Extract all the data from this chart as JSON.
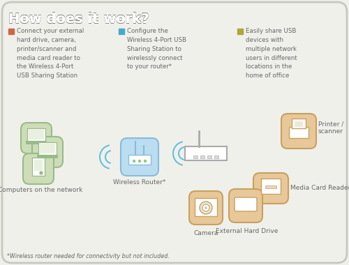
{
  "title": "How does it work?",
  "bg_color": "#f0f0eb",
  "border_color": "#c8c8c0",
  "title_color": "#666666",
  "bullet1_color": "#cc6644",
  "bullet2_color": "#44aacc",
  "bullet3_color": "#aaaa33",
  "bullet1_text": "Connect your external\nhard drive, camera,\nprinter/scanner and\nmedia card reader to\nthe Wireless 4-Port\nUSB Sharing Station",
  "bullet2_text": "Configure the\nWireless 4-Port USB\nSharing Station to\nwirelessly connect\nto your router*",
  "bullet3_text": "Easily share USB\ndevices with\nmultiple network\nusers in different\nlocations in the\nhome of office",
  "footer_text": "*Wireless router needed for connectivity but not included.",
  "green_fill": "#ccddb8",
  "green_edge": "#99bb88",
  "blue_fill": "#bbddf0",
  "blue_edge": "#88bbdd",
  "orange_fill": "#e8c898",
  "orange_edge": "#c8a060",
  "usb_fill": "#e8e8e0",
  "usb_edge": "#aaaaaa",
  "label_computers": "Computers on the network",
  "label_router": "Wireless Router*",
  "label_camera": "Camera",
  "label_hdd": "External Hard Drive",
  "label_mcr": "Media Card Reader",
  "label_printer": "Printer /\nscanner",
  "text_color": "#666666",
  "line_color": "#aaaaaa",
  "wifi_color": "#55bbdd"
}
